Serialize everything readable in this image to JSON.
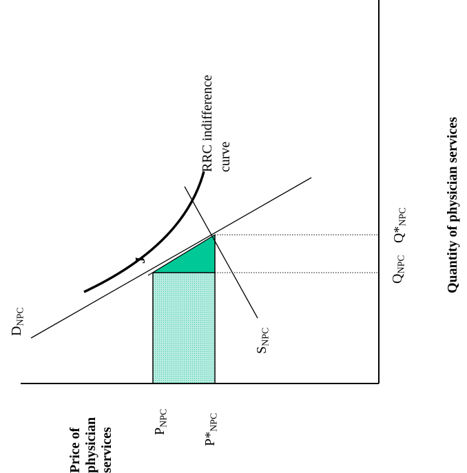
{
  "diagram": {
    "axis_labels": {
      "price": [
        "Price of",
        "physician",
        "services"
      ],
      "quantity": "Quantity of physician services"
    },
    "curves": {
      "demand": {
        "main": "D",
        "sub": "NPC"
      },
      "supply": {
        "main": "S",
        "sub": "NPC"
      },
      "indifference": [
        "RRC indifference",
        "curve"
      ]
    },
    "point_label": "J",
    "price_ticks": {
      "p": {
        "main": "P",
        "sub": "NPC"
      },
      "p_star": {
        "main": "P*",
        "sub": "NPC"
      }
    },
    "quantity_ticks": {
      "q": {
        "main": "Q",
        "sub": "NPC"
      },
      "q_star": {
        "main": "Q*",
        "sub": "NPC"
      }
    },
    "colors": {
      "rectangle_fill": "#9ee3d3",
      "triangle_fill": "#00c896",
      "line": "#000000"
    }
  }
}
